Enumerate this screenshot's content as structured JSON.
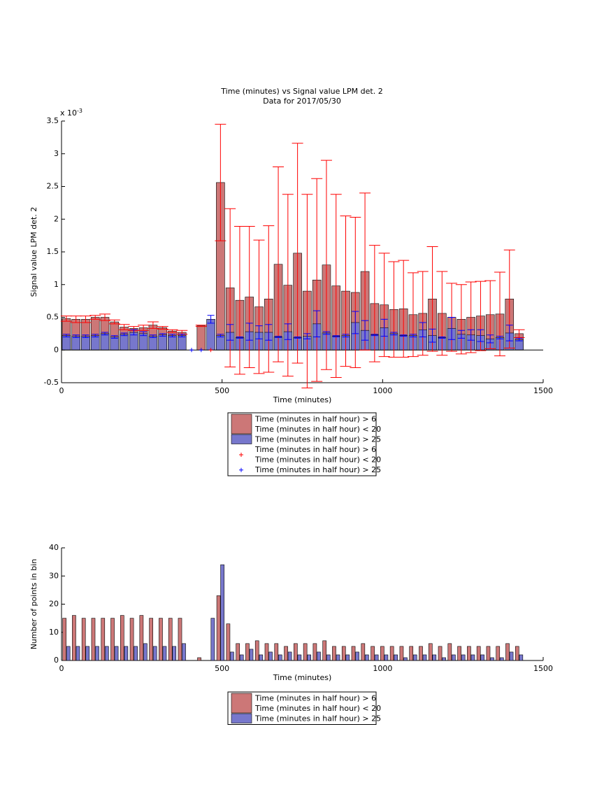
{
  "chart_data": [
    {
      "type": "bar",
      "barmode": "overlay",
      "title": "Time (minutes) vs Signal value LPM det. 2",
      "subtitle": "Data for 2017/05/30",
      "x_label": "Time (minutes)",
      "y_label": "Signal value LPM det. 2",
      "y_multiplier": "x 10",
      "y_exponent": "-3",
      "x": [
        15,
        45,
        75,
        105,
        135,
        165,
        195,
        225,
        255,
        285,
        315,
        345,
        375,
        405,
        435,
        465,
        495,
        525,
        555,
        585,
        615,
        645,
        675,
        705,
        735,
        765,
        795,
        825,
        855,
        885,
        915,
        945,
        975,
        1005,
        1035,
        1065,
        1095,
        1125,
        1155,
        1185,
        1215,
        1245,
        1275,
        1305,
        1335,
        1365,
        1395,
        1425
      ],
      "xlim": [
        0,
        1500
      ],
      "xticks": [
        0,
        500,
        1000,
        1500
      ],
      "ylim": [
        -0.5,
        3.5
      ],
      "yticks": [
        -0.5,
        0,
        0.5,
        1,
        1.5,
        2,
        2.5,
        3,
        3.5
      ],
      "series": [
        {
          "name": [
            "Time (minutes in half hour) > 6",
            "Time (minutes in half hour) < 20"
          ],
          "color": "#cc7777",
          "error_color": "#ff0000",
          "values": [
            0.48,
            0.47,
            0.47,
            0.5,
            0.5,
            0.43,
            0.35,
            0.33,
            0.34,
            0.38,
            0.34,
            0.29,
            0.27,
            null,
            0.37,
            null,
            2.56,
            0.95,
            0.76,
            0.81,
            0.66,
            0.78,
            1.31,
            0.99,
            1.48,
            0.9,
            1.07,
            1.3,
            0.98,
            0.9,
            0.88,
            1.2,
            0.71,
            0.69,
            0.62,
            0.63,
            0.54,
            0.56,
            0.78,
            0.56,
            0.5,
            0.47,
            0.5,
            0.52,
            0.54,
            0.55,
            0.78,
            0.25
          ],
          "errors": [
            0.04,
            0.05,
            0.05,
            0.03,
            0.05,
            0.03,
            0.04,
            0.03,
            0.04,
            0.05,
            0.02,
            0.02,
            0.03,
            null,
            0.01,
            null,
            0.89,
            1.21,
            1.13,
            1.08,
            1.02,
            1.12,
            1.49,
            1.39,
            1.68,
            1.48,
            1.55,
            1.6,
            1.4,
            1.15,
            1.15,
            1.2,
            0.89,
            0.79,
            0.73,
            0.74,
            0.64,
            0.64,
            0.8,
            0.64,
            0.52,
            0.53,
            0.54,
            0.53,
            0.52,
            0.64,
            0.75,
            0.06
          ]
        },
        {
          "name": [
            "Time (minutes in half hour) > 25"
          ],
          "color": "#7777cc",
          "error_color": "#0000ff",
          "values": [
            0.22,
            0.21,
            0.21,
            0.22,
            0.25,
            0.2,
            0.24,
            0.27,
            0.25,
            0.21,
            0.23,
            0.22,
            0.22,
            null,
            null,
            0.47,
            0.22,
            0.27,
            0.19,
            0.28,
            0.27,
            0.27,
            0.2,
            0.28,
            0.19,
            0.21,
            0.4,
            0.26,
            0.21,
            0.22,
            0.42,
            0.3,
            0.23,
            0.34,
            0.25,
            0.22,
            0.22,
            0.31,
            0.22,
            0.19,
            0.33,
            0.24,
            0.23,
            0.22,
            0.17,
            0.19,
            0.26,
            0.16
          ],
          "errors": [
            0.02,
            0.02,
            0.02,
            0.02,
            0.02,
            0.02,
            0.02,
            0.04,
            0.03,
            0.02,
            0.02,
            0.02,
            0.02,
            null,
            null,
            0.06,
            0.02,
            0.12,
            0.01,
            0.13,
            0.1,
            0.12,
            0.01,
            0.12,
            0.01,
            0.04,
            0.2,
            0.02,
            0.01,
            0.02,
            0.17,
            0.15,
            0.01,
            0.13,
            0.02,
            0.01,
            0.02,
            0.11,
            0.1,
            0.01,
            0.17,
            0.06,
            0.08,
            0.09,
            0.06,
            0.02,
            0.12,
            0.02
          ]
        }
      ],
      "markers": [
        {
          "name": [
            "Time (minutes in half hour) > 6",
            "Time (minutes in half hour) < 20"
          ],
          "color": "#ff0000",
          "x": [
            465
          ],
          "values": [
            0
          ]
        },
        {
          "name": [
            "Time (minutes in half hour) > 25"
          ],
          "color": "#0000ff",
          "x": [
            405,
            435
          ],
          "values": [
            0,
            0
          ]
        }
      ]
    },
    {
      "type": "bar",
      "barmode": "group",
      "x_label": "Time (minutes)",
      "y_label": "Number of points in bin",
      "x": [
        15,
        45,
        75,
        105,
        135,
        165,
        195,
        225,
        255,
        285,
        315,
        345,
        375,
        405,
        435,
        465,
        495,
        525,
        555,
        585,
        615,
        645,
        675,
        705,
        735,
        765,
        795,
        825,
        855,
        885,
        915,
        945,
        975,
        1005,
        1035,
        1065,
        1095,
        1125,
        1155,
        1185,
        1215,
        1245,
        1275,
        1305,
        1335,
        1365,
        1395,
        1425
      ],
      "xlim": [
        0,
        1500
      ],
      "xticks": [
        0,
        500,
        1000,
        1500
      ],
      "ylim": [
        0,
        40
      ],
      "yticks": [
        0,
        10,
        20,
        30,
        40
      ],
      "series": [
        {
          "name": [
            "Time (minutes in half hour) > 6",
            "Time (minutes in half hour) < 20"
          ],
          "color": "#cc7777",
          "values": [
            15,
            16,
            15,
            15,
            15,
            15,
            16,
            15,
            16,
            15,
            15,
            15,
            15,
            0,
            1,
            0,
            23,
            13,
            6,
            6,
            7,
            6,
            6,
            5,
            6,
            6,
            6,
            7,
            5,
            5,
            5,
            6,
            5,
            5,
            5,
            5,
            5,
            5,
            6,
            5,
            6,
            5,
            5,
            5,
            5,
            5,
            6,
            5
          ]
        },
        {
          "name": [
            "Time (minutes in half hour) > 25"
          ],
          "color": "#7777cc",
          "values": [
            5,
            5,
            5,
            5,
            5,
            5,
            5,
            5,
            6,
            5,
            5,
            5,
            6,
            0,
            0,
            15,
            34,
            3,
            2,
            4,
            2,
            3,
            2,
            3,
            2,
            2,
            3,
            2,
            2,
            2,
            3,
            2,
            2,
            2,
            2,
            1,
            2,
            2,
            2,
            1,
            2,
            2,
            2,
            2,
            1,
            1,
            3,
            2
          ]
        }
      ]
    }
  ]
}
